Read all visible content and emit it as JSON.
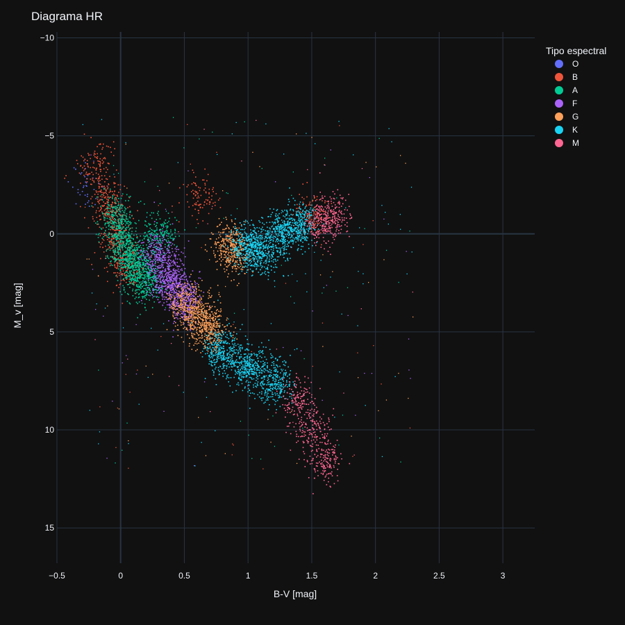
{
  "chart_data": {
    "type": "scatter",
    "title": "Diagrama HR",
    "xlabel": "B-V [mag]",
    "ylabel": "M_v [mag]",
    "xlim": [
      -0.5,
      3.25
    ],
    "ylim": [
      16.8,
      -10.3
    ],
    "y_reversed": true,
    "x_ticks": [
      -0.5,
      0,
      0.5,
      1,
      1.5,
      2,
      2.5,
      3
    ],
    "x_tick_labels": [
      "−0.5",
      "0",
      "0.5",
      "1",
      "1.5",
      "2",
      "2.5",
      "3"
    ],
    "y_ticks": [
      -10,
      -5,
      0,
      5,
      10,
      15
    ],
    "y_tick_labels": [
      "−10",
      "−5",
      "0",
      "5",
      "10",
      "15"
    ],
    "grid": true,
    "legend": {
      "title": "Tipo espectral",
      "placement": "right-top",
      "entries": [
        "O",
        "B",
        "A",
        "F",
        "G",
        "K",
        "M"
      ]
    },
    "series": [
      {
        "name": "O",
        "color": "#636efa",
        "approx_distribution": [
          [
            -0.3,
            -3.0
          ],
          [
            -0.25,
            -2.0
          ]
        ]
      },
      {
        "name": "B",
        "color": "#ef553b",
        "approx_distribution": [
          [
            -0.2,
            -3.5
          ],
          [
            -0.12,
            -2.0
          ],
          [
            -0.1,
            -1.0
          ],
          [
            -0.05,
            0.0
          ],
          [
            0.0,
            1.0
          ],
          [
            0.05,
            2.0
          ],
          [
            0.6,
            -2.0
          ],
          [
            1.5,
            -1.0
          ]
        ]
      },
      {
        "name": "A",
        "color": "#00cc96",
        "approx_distribution": [
          [
            -0.05,
            -1.0
          ],
          [
            0.0,
            0.0
          ],
          [
            0.05,
            1.0
          ],
          [
            0.1,
            1.5
          ],
          [
            0.15,
            2.0
          ],
          [
            0.2,
            2.5
          ],
          [
            0.3,
            0.0
          ]
        ]
      },
      {
        "name": "F",
        "color": "#ab63fa",
        "approx_distribution": [
          [
            0.3,
            1.0
          ],
          [
            0.35,
            2.0
          ],
          [
            0.4,
            2.5
          ],
          [
            0.45,
            3.0
          ],
          [
            0.5,
            3.5
          ]
        ]
      },
      {
        "name": "G",
        "color": "#ffa15a",
        "approx_distribution": [
          [
            0.5,
            3.5
          ],
          [
            0.6,
            4.0
          ],
          [
            0.65,
            4.5
          ],
          [
            0.7,
            5.0
          ],
          [
            0.85,
            0.5
          ],
          [
            0.9,
            1.0
          ]
        ]
      },
      {
        "name": "K",
        "color": "#19d3f3",
        "approx_distribution": [
          [
            0.8,
            6.0
          ],
          [
            1.0,
            6.8
          ],
          [
            1.2,
            7.5
          ],
          [
            1.0,
            0.5
          ],
          [
            1.1,
            1.0
          ],
          [
            1.25,
            0.0
          ],
          [
            1.4,
            -0.5
          ]
        ]
      },
      {
        "name": "M",
        "color": "#ff6692",
        "approx_distribution": [
          [
            1.6,
            -0.5
          ],
          [
            1.65,
            -1.0
          ],
          [
            1.4,
            8.5
          ],
          [
            1.5,
            10.0
          ],
          [
            1.6,
            11.5
          ]
        ]
      }
    ]
  }
}
